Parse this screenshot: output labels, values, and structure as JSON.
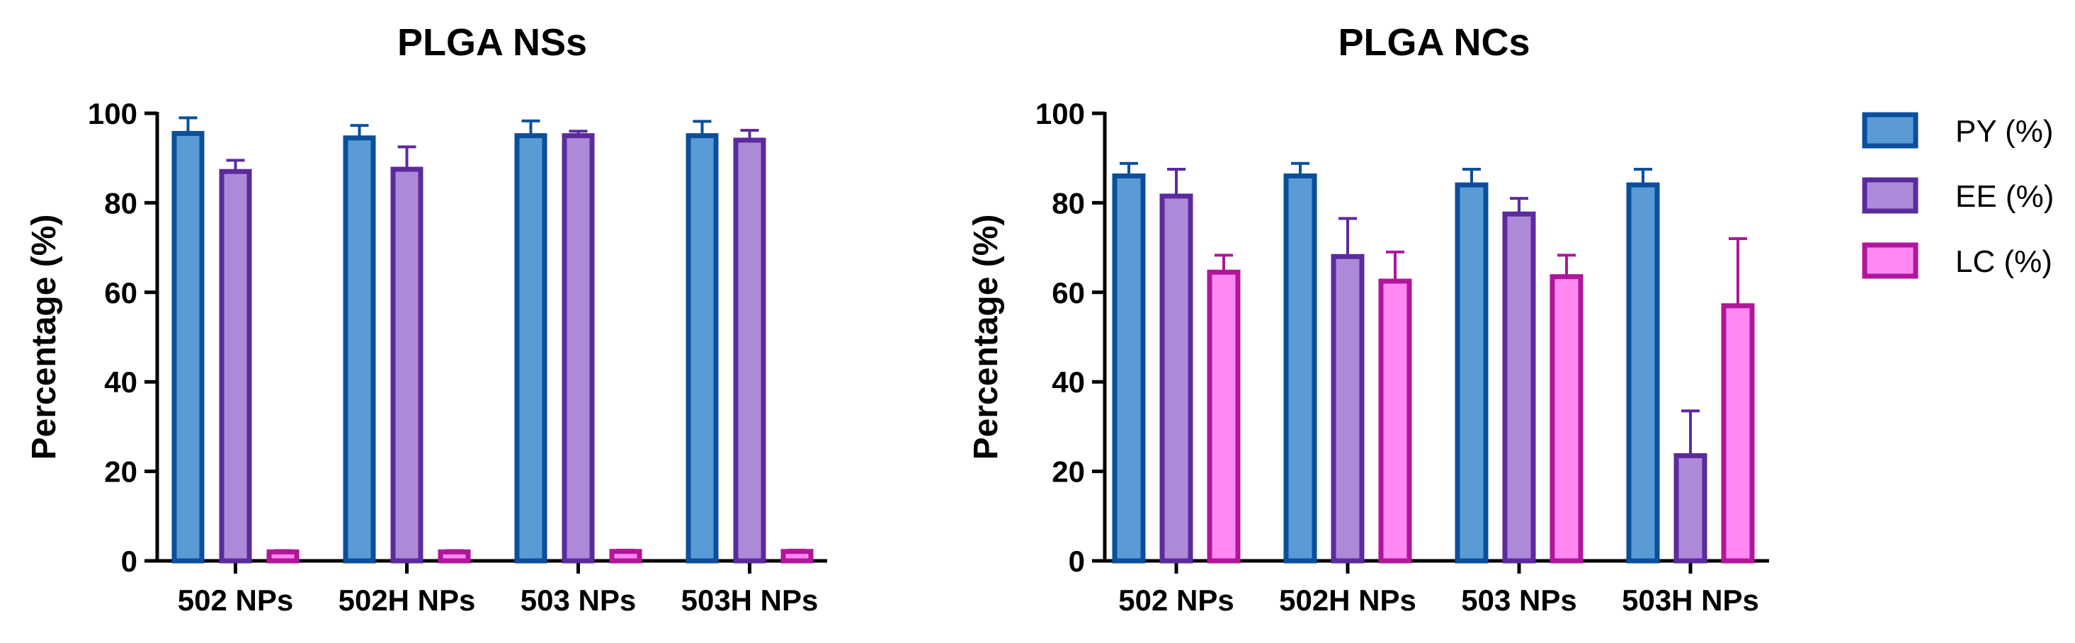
{
  "chart_data": [
    {
      "type": "bar",
      "title": "PLGA NSs",
      "xlabel": "",
      "ylabel": "Percentage (%)",
      "ylim": [
        0,
        100
      ],
      "yticks": [
        0,
        20,
        40,
        60,
        80,
        100
      ],
      "grid": false,
      "categories": [
        "502 NPs",
        "502H NPs",
        "503 NPs",
        "503H NPs"
      ],
      "series": [
        {
          "name": "PY (%)",
          "values": [
            95.5,
            94.5,
            95.0,
            95.0
          ],
          "errors": [
            3.5,
            2.8,
            3.3,
            3.2
          ]
        },
        {
          "name": "EE (%)",
          "values": [
            87.0,
            87.5,
            95.0,
            94.0
          ],
          "errors": [
            2.5,
            5.0,
            1.0,
            2.2
          ]
        },
        {
          "name": "LC (%)",
          "values": [
            2.0,
            2.0,
            2.1,
            2.1
          ],
          "errors": [
            0.3,
            0.3,
            0.3,
            0.3
          ]
        }
      ]
    },
    {
      "type": "bar",
      "title": "PLGA NCs",
      "xlabel": "",
      "ylabel": "Percentage (%)",
      "ylim": [
        0,
        100
      ],
      "yticks": [
        0,
        20,
        40,
        60,
        80,
        100
      ],
      "grid": false,
      "categories": [
        "502 NPs",
        "502H NPs",
        "503 NPs",
        "503H NPs"
      ],
      "series": [
        {
          "name": "PY (%)",
          "values": [
            86.0,
            86.0,
            84.0,
            84.0
          ],
          "errors": [
            2.8,
            2.8,
            3.5,
            3.5
          ]
        },
        {
          "name": "EE (%)",
          "values": [
            81.5,
            68.0,
            77.5,
            23.5
          ],
          "errors": [
            6.0,
            8.5,
            3.5,
            10.0
          ]
        },
        {
          "name": "LC (%)",
          "values": [
            64.5,
            62.5,
            63.5,
            57.0
          ],
          "errors": [
            3.8,
            6.5,
            4.8,
            15.0
          ]
        }
      ]
    }
  ],
  "legend": {
    "position": "right",
    "items": [
      {
        "label": "PY (%)",
        "fill": "#5b9bd5",
        "stroke": "#0b4f9c"
      },
      {
        "label": "EE (%)",
        "fill": "#ad8ad8",
        "stroke": "#5b2b9e"
      },
      {
        "label": "LC (%)",
        "fill": "#ff88f2",
        "stroke": "#b0169a"
      }
    ]
  },
  "colors": {
    "series": [
      {
        "fill": "#5b9bd5",
        "stroke": "#0b4f9c"
      },
      {
        "fill": "#ad8ad8",
        "stroke": "#5b2b9e"
      },
      {
        "fill": "#ff88f2",
        "stroke": "#b0169a"
      }
    ],
    "axis": "#000000"
  }
}
